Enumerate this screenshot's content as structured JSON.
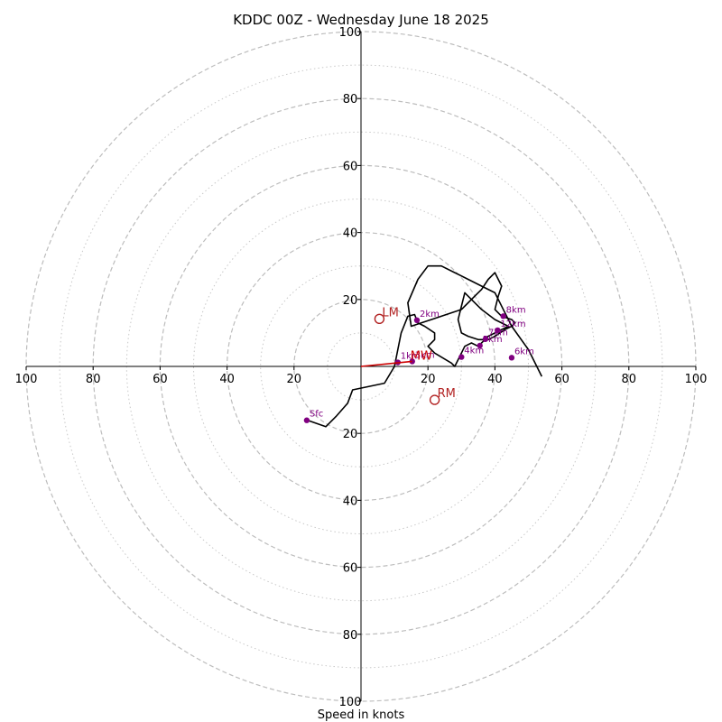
{
  "chart_data": {
    "type": "line",
    "title": "KDDC 00Z - Wednesday June 18 2025",
    "xlabel": "Speed in knots",
    "ring_labels": [
      "20",
      "40",
      "60",
      "80",
      "100"
    ],
    "rings_major": [
      20,
      40,
      60,
      80,
      100
    ],
    "rings_minor": [
      10,
      30,
      50,
      70,
      90
    ],
    "ylim": [
      -100,
      100
    ],
    "xlim": [
      -100,
      100
    ],
    "hodograph": {
      "color": "#000000",
      "u": [
        -16.2,
        -10.5,
        -7.5,
        -4,
        -2.5,
        7,
        10,
        11,
        12,
        14,
        16,
        17,
        19,
        22,
        22,
        20,
        22,
        27,
        28,
        30,
        31,
        33,
        35,
        37,
        38,
        42,
        44,
        40,
        36,
        33,
        31,
        29,
        30,
        32,
        35,
        38,
        40,
        43,
        45,
        46,
        45,
        42,
        40,
        41,
        42,
        40,
        38,
        36,
        34,
        32,
        30,
        27,
        24,
        21,
        18,
        15,
        14,
        17,
        20,
        24,
        28,
        32,
        36,
        40,
        42,
        45,
        50,
        54
      ],
      "v": [
        -16,
        -18,
        -15,
        -11,
        -7,
        -5,
        0,
        5,
        10,
        15,
        15.5,
        13,
        12,
        10,
        8,
        6,
        4,
        1,
        0,
        4,
        6,
        7,
        6,
        8,
        9,
        11,
        12,
        14,
        17,
        20,
        22,
        14,
        10,
        9,
        8,
        8,
        9,
        11,
        12,
        13,
        14,
        15,
        17,
        21,
        24,
        28,
        26,
        23,
        21,
        19,
        17,
        16,
        15,
        14,
        13,
        12,
        19,
        26,
        30,
        30,
        28,
        26,
        24,
        22,
        18,
        12,
        5,
        -3
      ]
    },
    "height_markers": {
      "color": "#800080",
      "points": [
        {
          "label": "Sfc",
          "u": -16.2,
          "v": -16.1
        },
        {
          "label": "1km",
          "u": 11.0,
          "v": 1.2
        },
        {
          "label": "3km",
          "u": 15.3,
          "v": 1.5
        },
        {
          "label": "2km",
          "u": 16.7,
          "v": 13.8
        },
        {
          "label": "4km",
          "u": 30.0,
          "v": 2.8
        },
        {
          "label": "5km",
          "u": 35.5,
          "v": 6.2
        },
        {
          "label": "6km",
          "u": 45.0,
          "v": 2.6
        },
        {
          "label": "7km",
          "u": 37.2,
          "v": 8.2
        },
        {
          "label": "8km",
          "u": 42.5,
          "v": 15.0
        },
        {
          "label": "12km",
          "u": 40.8,
          "v": 10.8
        }
      ]
    },
    "mean_wind": {
      "label": "MW",
      "u": 15.3,
      "v": 1.5,
      "color": "#cc0000"
    },
    "left_mover": {
      "label": "LM",
      "u": 5.5,
      "v": 14.2,
      "color": "#b22222"
    },
    "right_mover": {
      "label": "RM",
      "u": 22.0,
      "v": -10.0,
      "color": "#b22222"
    },
    "grid": true
  }
}
